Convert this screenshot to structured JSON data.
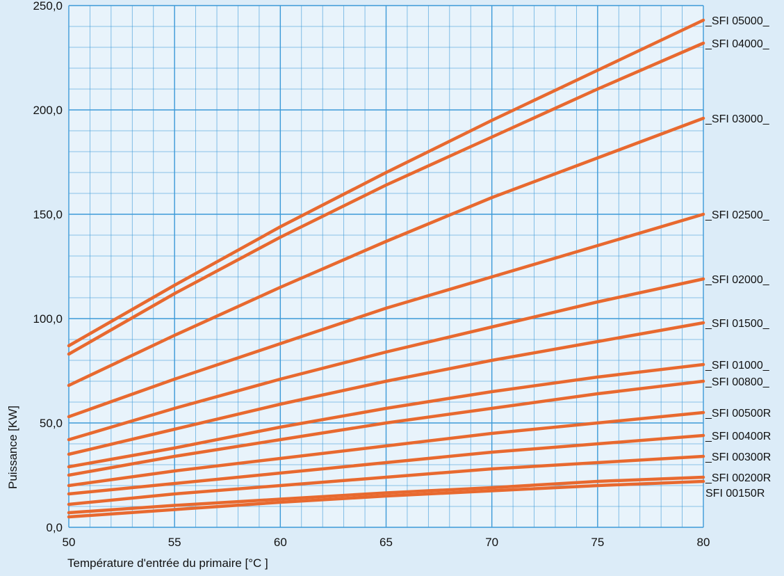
{
  "chart_data": {
    "type": "line",
    "title": "",
    "xlabel": "Température d'entrée du primaire [°C ]",
    "ylabel": "Puissance [KW]",
    "xlim": [
      50,
      80
    ],
    "ylim": [
      0,
      250
    ],
    "x_ticks": [
      "50",
      "55",
      "60",
      "65",
      "70",
      "75",
      "80"
    ],
    "y_ticks": [
      "0,0",
      "50,0",
      "100,0",
      "150,0",
      "200,0",
      "250,0"
    ],
    "grid": true,
    "legend": "right-edge labels",
    "colors": {
      "series": "#e8692f",
      "grid": "#3c9ad8",
      "background": "#dcecf8",
      "plot_background": "#e8f3fb"
    },
    "series": [
      {
        "name": "_SFI 05000_",
        "x": [
          50,
          55,
          60,
          65,
          70,
          75,
          80
        ],
        "values": [
          87,
          116,
          144,
          170,
          195,
          219,
          243
        ]
      },
      {
        "name": "_SFI 04000_",
        "x": [
          50,
          55,
          60,
          65,
          70,
          75,
          80
        ],
        "values": [
          83,
          112,
          139,
          164,
          187,
          210,
          232
        ]
      },
      {
        "name": "_SFI 03000_",
        "x": [
          50,
          55,
          60,
          65,
          70,
          75,
          80
        ],
        "values": [
          68,
          92,
          115,
          137,
          158,
          177,
          196
        ]
      },
      {
        "name": "_SFI 02500_",
        "x": [
          50,
          55,
          60,
          65,
          70,
          75,
          80
        ],
        "values": [
          53,
          71,
          88,
          105,
          120,
          135,
          150
        ]
      },
      {
        "name": "_SFI 02000_",
        "x": [
          50,
          55,
          60,
          65,
          70,
          75,
          80
        ],
        "values": [
          42,
          57,
          71,
          84,
          96,
          108,
          119
        ]
      },
      {
        "name": "_SFI 01500_",
        "x": [
          50,
          55,
          60,
          65,
          70,
          75,
          80
        ],
        "values": [
          35,
          47,
          59,
          70,
          80,
          89,
          98
        ]
      },
      {
        "name": "_SFI 01000_",
        "x": [
          50,
          55,
          60,
          65,
          70,
          75,
          80
        ],
        "values": [
          29,
          38,
          48,
          57,
          65,
          72,
          78
        ]
      },
      {
        "name": "_SFI 00800_",
        "x": [
          50,
          55,
          60,
          65,
          70,
          75,
          80
        ],
        "values": [
          25,
          34,
          42,
          50,
          57,
          64,
          70
        ]
      },
      {
        "name": "_SFI 00500R",
        "x": [
          50,
          55,
          60,
          65,
          70,
          75,
          80
        ],
        "values": [
          20,
          27,
          33,
          39,
          45,
          50,
          55
        ]
      },
      {
        "name": "_SFI 00400R",
        "x": [
          50,
          55,
          60,
          65,
          70,
          75,
          80
        ],
        "values": [
          16,
          21,
          26,
          31,
          36,
          40,
          44
        ]
      },
      {
        "name": "_SFI 00300R",
        "x": [
          50,
          55,
          60,
          65,
          70,
          75,
          80
        ],
        "values": [
          11,
          16,
          20,
          24,
          28,
          31,
          34
        ]
      },
      {
        "name": "_SFI 00200R",
        "x": [
          50,
          55,
          60,
          65,
          70,
          75,
          80
        ],
        "values": [
          7,
          10.5,
          13.5,
          16.5,
          19,
          22,
          24
        ]
      },
      {
        "name": "SFI 00150R",
        "x": [
          50,
          55,
          60,
          65,
          70,
          75,
          80
        ],
        "values": [
          5,
          8.5,
          12,
          15,
          17.5,
          20,
          22
        ]
      }
    ]
  }
}
